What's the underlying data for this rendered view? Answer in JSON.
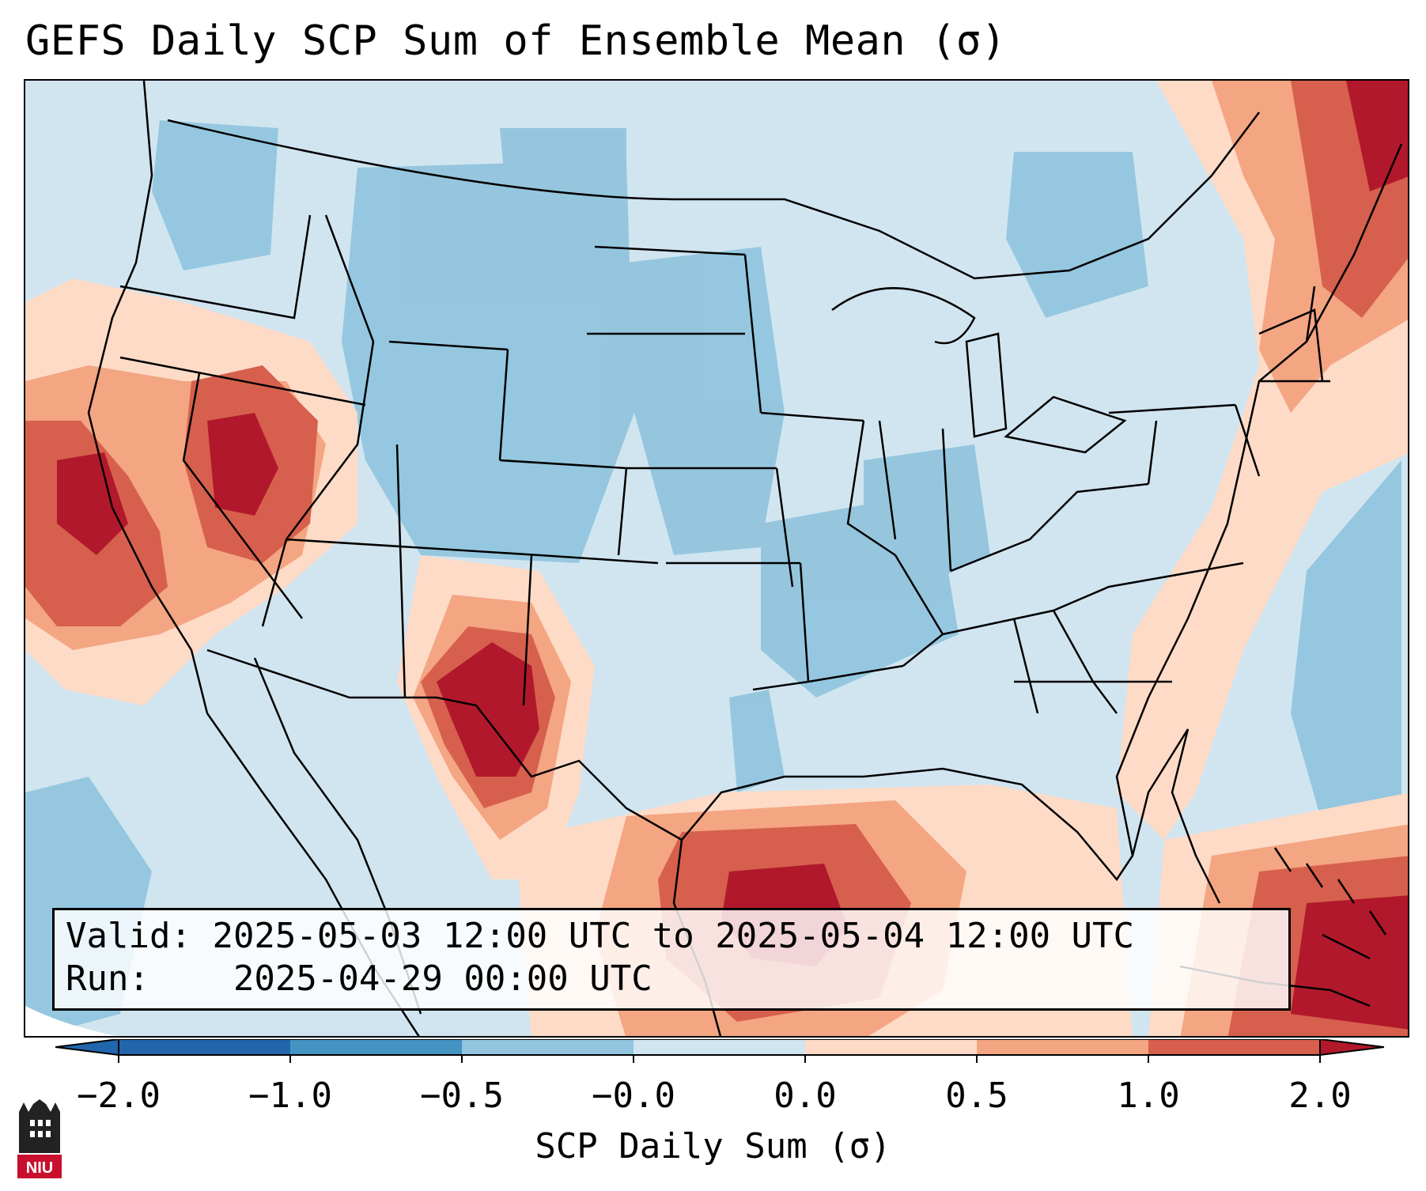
{
  "title": "GEFS Daily SCP Sum of Ensemble Mean (σ)",
  "info": {
    "valid_label": "Valid:",
    "valid_value": "2025-05-03 12:00 UTC to 2025-05-04 12:00 UTC",
    "run_label": "Run:",
    "run_value": "2025-04-29 00:00 UTC"
  },
  "colorbar": {
    "label": "SCP Daily Sum (σ)",
    "ticks": [
      "−2.0",
      "−1.0",
      "−0.5",
      "−0.0",
      "0.0",
      "0.5",
      "1.0",
      "2.0"
    ],
    "colors": [
      "#2166ac",
      "#4393c3",
      "#92c5de",
      "#d1e5f0",
      "#fddbc7",
      "#f4a582",
      "#d6604d",
      "#b2182b"
    ],
    "extend": "both"
  },
  "logo": {
    "text": "NIU"
  },
  "colors": {
    "ocean_light": "#d1e5f0",
    "negative_mid": "#92c5de",
    "positive_light": "#fddbc7",
    "positive_mid": "#f4a582",
    "positive_strong": "#d6604d",
    "positive_max": "#b2182b"
  }
}
